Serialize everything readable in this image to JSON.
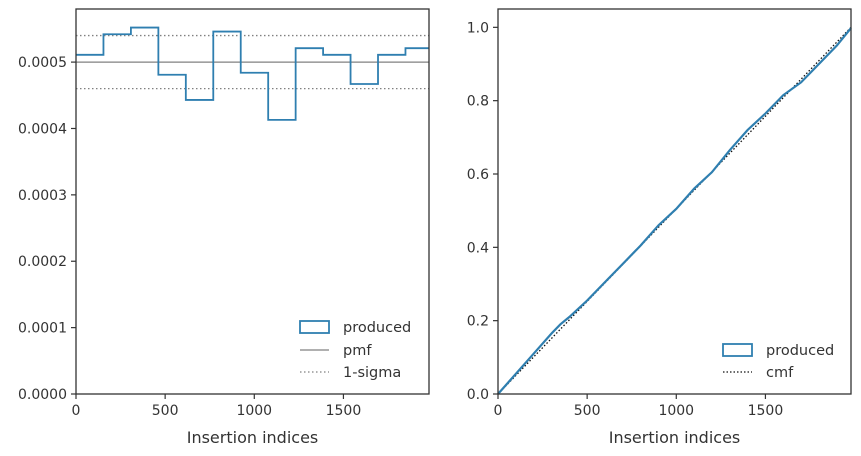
{
  "chart_data": [
    {
      "type": "step",
      "xlabel": "Insertion indices",
      "ylabel": "",
      "xlim": [
        0,
        1980
      ],
      "ylim": [
        0,
        0.00058
      ],
      "xticks": [
        0,
        500,
        1000,
        1500
      ],
      "xtick_labels": [
        "0",
        "500",
        "1000",
        "1500"
      ],
      "yticks": [
        0,
        0.0001,
        0.0002,
        0.0003,
        0.0004,
        0.0005
      ],
      "ytick_labels": [
        "0.0000",
        "0.0001",
        "0.0002",
        "0.0003",
        "0.0004",
        "0.0005"
      ],
      "bin_edges": [
        0,
        154,
        308,
        462,
        616,
        770,
        924,
        1078,
        1232,
        1386,
        1540,
        1694,
        1848,
        1980
      ],
      "series": [
        {
          "name": "produced",
          "style": "step",
          "color": "#2f7fb0",
          "values": [
            0.000511,
            0.000542,
            0.000552,
            0.000481,
            0.000443,
            0.000546,
            0.000484,
            0.000413,
            0.000521,
            0.000511,
            0.000467,
            0.000511,
            0.000521
          ]
        },
        {
          "name": "pmf",
          "style": "hline",
          "color": "#808080",
          "value": 0.0005
        },
        {
          "name": "1-sigma",
          "style": "hline-dotted",
          "color": "#808080",
          "values": [
            0.00054,
            0.00046
          ]
        }
      ],
      "legend": [
        "produced",
        "pmf",
        "1-sigma"
      ],
      "legend_position": "lower-right",
      "grid": false
    },
    {
      "type": "line",
      "xlabel": "Insertion indices",
      "ylabel": "",
      "xlim": [
        0,
        1980
      ],
      "ylim": [
        0,
        1.05
      ],
      "xticks": [
        0,
        500,
        1000,
        1500
      ],
      "xtick_labels": [
        "0",
        "500",
        "1000",
        "1500"
      ],
      "yticks": [
        0,
        0.2,
        0.4,
        0.6,
        0.8,
        1.0
      ],
      "ytick_labels": [
        "0.0",
        "0.2",
        "0.4",
        "0.6",
        "0.8",
        "1.0"
      ],
      "series": [
        {
          "name": "produced",
          "style": "step",
          "color": "#2f7fb0",
          "x": [
            0,
            100,
            200,
            300,
            350,
            400,
            500,
            600,
            700,
            800,
            900,
            1000,
            1100,
            1200,
            1300,
            1400,
            1500,
            1600,
            1700,
            1800,
            1900,
            1980
          ],
          "y": [
            0,
            0.055,
            0.11,
            0.165,
            0.19,
            0.21,
            0.255,
            0.305,
            0.355,
            0.405,
            0.46,
            0.505,
            0.56,
            0.605,
            0.665,
            0.72,
            0.765,
            0.815,
            0.85,
            0.9,
            0.95,
            0.998
          ]
        },
        {
          "name": "cmf",
          "style": "dotted",
          "color": "#111111",
          "x": [
            0,
            1980
          ],
          "y": [
            0,
            1.0
          ]
        }
      ],
      "legend": [
        "produced",
        "cmf"
      ],
      "legend_position": "lower-right",
      "grid": false
    }
  ]
}
